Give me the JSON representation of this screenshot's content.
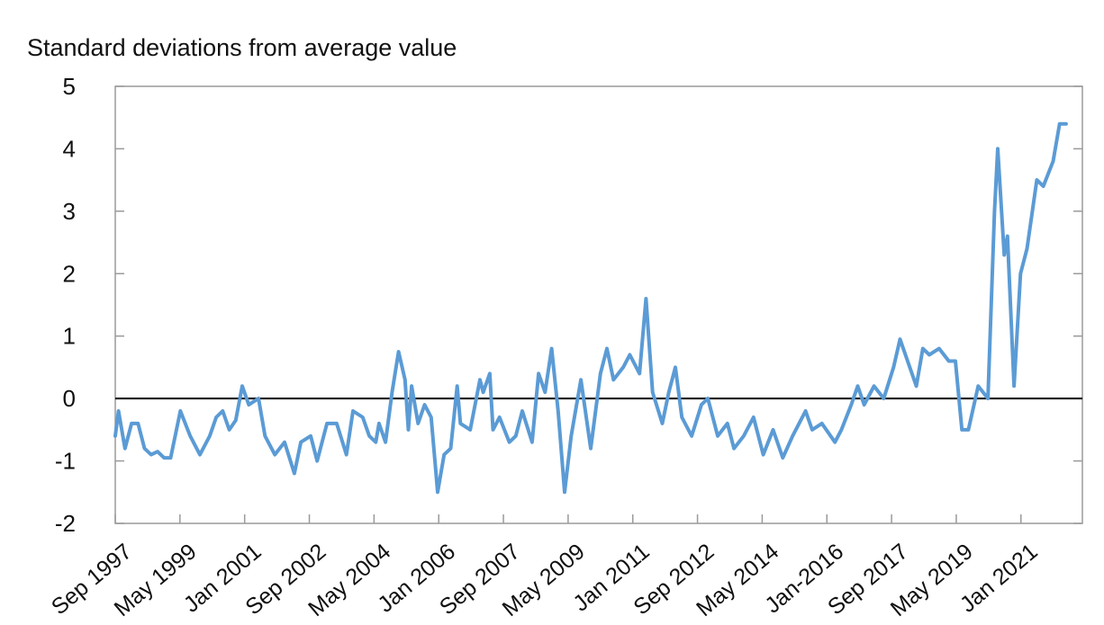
{
  "chart_data": {
    "type": "line",
    "title": "",
    "ylabel": "Standard deviations from average value",
    "xlabel": "",
    "ylim": [
      -2,
      5
    ],
    "yticks": [
      -2,
      -1,
      0,
      1,
      2,
      3,
      4,
      5
    ],
    "x_range": [
      "1997-09",
      "2022-06"
    ],
    "xticks": [
      "Sep 1997",
      "May 1999",
      "Jan 2001",
      "Sep 2002",
      "May 2004",
      "Jan 2006",
      "Sep 2007",
      "May 2009",
      "Jan 2011",
      "Sep 2012",
      "May 2014",
      "Jan-2016",
      "Sep 2017",
      "May 2019",
      "Jan 2021"
    ],
    "grid": false,
    "legend": "none",
    "series_color": "#5b9bd5",
    "zero_line_color": "#000000",
    "series": [
      {
        "points": [
          [
            "1997-09",
            -0.6
          ],
          [
            "1997-10",
            -0.2
          ],
          [
            "1997-11",
            -0.5
          ],
          [
            "1997-12",
            -0.8
          ],
          [
            "1998-02",
            -0.4
          ],
          [
            "1998-04",
            -0.4
          ],
          [
            "1998-06",
            -0.8
          ],
          [
            "1998-08",
            -0.9
          ],
          [
            "1998-10",
            -0.85
          ],
          [
            "1998-12",
            -0.95
          ],
          [
            "1999-02",
            -0.95
          ],
          [
            "1999-05",
            -0.2
          ],
          [
            "1999-08",
            -0.6
          ],
          [
            "1999-11",
            -0.9
          ],
          [
            "2000-02",
            -0.6
          ],
          [
            "2000-04",
            -0.3
          ],
          [
            "2000-06",
            -0.2
          ],
          [
            "2000-08",
            -0.5
          ],
          [
            "2000-10",
            -0.35
          ],
          [
            "2000-12",
            0.2
          ],
          [
            "2001-02",
            -0.1
          ],
          [
            "2001-05",
            0.0
          ],
          [
            "2001-07",
            -0.6
          ],
          [
            "2001-10",
            -0.9
          ],
          [
            "2002-01",
            -0.7
          ],
          [
            "2002-04",
            -1.2
          ],
          [
            "2002-06",
            -0.7
          ],
          [
            "2002-09",
            -0.6
          ],
          [
            "2002-11",
            -1.0
          ],
          [
            "2003-02",
            -0.4
          ],
          [
            "2003-05",
            -0.4
          ],
          [
            "2003-08",
            -0.9
          ],
          [
            "2003-10",
            -0.2
          ],
          [
            "2004-01",
            -0.3
          ],
          [
            "2004-03",
            -0.6
          ],
          [
            "2004-05",
            -0.7
          ],
          [
            "2004-06",
            -0.4
          ],
          [
            "2004-08",
            -0.7
          ],
          [
            "2004-10",
            0.1
          ],
          [
            "2004-12",
            0.75
          ],
          [
            "2005-02",
            0.3
          ],
          [
            "2005-03",
            -0.5
          ],
          [
            "2005-04",
            0.2
          ],
          [
            "2005-06",
            -0.4
          ],
          [
            "2005-08",
            -0.1
          ],
          [
            "2005-10",
            -0.3
          ],
          [
            "2005-12",
            -1.5
          ],
          [
            "2006-02",
            -0.9
          ],
          [
            "2006-04",
            -0.8
          ],
          [
            "2006-06",
            0.2
          ],
          [
            "2006-07",
            -0.4
          ],
          [
            "2006-10",
            -0.5
          ],
          [
            "2007-01",
            0.3
          ],
          [
            "2007-02",
            0.1
          ],
          [
            "2007-04",
            0.4
          ],
          [
            "2007-05",
            -0.5
          ],
          [
            "2007-07",
            -0.3
          ],
          [
            "2007-10",
            -0.7
          ],
          [
            "2007-12",
            -0.6
          ],
          [
            "2008-02",
            -0.2
          ],
          [
            "2008-05",
            -0.7
          ],
          [
            "2008-07",
            0.4
          ],
          [
            "2008-09",
            0.1
          ],
          [
            "2008-11",
            0.8
          ],
          [
            "2009-01",
            -0.2
          ],
          [
            "2009-03",
            -1.5
          ],
          [
            "2009-05",
            -0.6
          ],
          [
            "2009-08",
            0.3
          ],
          [
            "2009-11",
            -0.8
          ],
          [
            "2010-02",
            0.4
          ],
          [
            "2010-04",
            0.8
          ],
          [
            "2010-06",
            0.3
          ],
          [
            "2010-09",
            0.5
          ],
          [
            "2010-11",
            0.7
          ],
          [
            "2011-02",
            0.4
          ],
          [
            "2011-04",
            1.6
          ],
          [
            "2011-06",
            0.1
          ],
          [
            "2011-09",
            -0.4
          ],
          [
            "2011-11",
            0.1
          ],
          [
            "2012-01",
            0.5
          ],
          [
            "2012-03",
            -0.3
          ],
          [
            "2012-06",
            -0.6
          ],
          [
            "2012-09",
            -0.1
          ],
          [
            "2012-11",
            0.0
          ],
          [
            "2013-02",
            -0.6
          ],
          [
            "2013-05",
            -0.4
          ],
          [
            "2013-07",
            -0.8
          ],
          [
            "2013-10",
            -0.6
          ],
          [
            "2014-01",
            -0.3
          ],
          [
            "2014-04",
            -0.9
          ],
          [
            "2014-07",
            -0.5
          ],
          [
            "2014-10",
            -0.95
          ],
          [
            "2015-01",
            -0.6
          ],
          [
            "2015-05",
            -0.2
          ],
          [
            "2015-07",
            -0.5
          ],
          [
            "2015-10",
            -0.4
          ],
          [
            "2016-02",
            -0.7
          ],
          [
            "2016-04",
            -0.5
          ],
          [
            "2016-07",
            -0.1
          ],
          [
            "2016-09",
            0.2
          ],
          [
            "2016-11",
            -0.1
          ],
          [
            "2017-02",
            0.2
          ],
          [
            "2017-05",
            0.0
          ],
          [
            "2017-08",
            0.5
          ],
          [
            "2017-10",
            0.95
          ],
          [
            "2018-01",
            0.5
          ],
          [
            "2018-03",
            0.2
          ],
          [
            "2018-05",
            0.8
          ],
          [
            "2018-07",
            0.7
          ],
          [
            "2018-10",
            0.8
          ],
          [
            "2019-01",
            0.6
          ],
          [
            "2019-03",
            0.6
          ],
          [
            "2019-05",
            -0.5
          ],
          [
            "2019-07",
            -0.5
          ],
          [
            "2019-10",
            0.2
          ],
          [
            "2020-01",
            0.0
          ],
          [
            "2020-03",
            3.0
          ],
          [
            "2020-04",
            4.0
          ],
          [
            "2020-06",
            2.3
          ],
          [
            "2020-07",
            2.6
          ],
          [
            "2020-09",
            0.2
          ],
          [
            "2020-11",
            2.0
          ],
          [
            "2021-01",
            2.4
          ],
          [
            "2021-04",
            3.5
          ],
          [
            "2021-06",
            3.4
          ],
          [
            "2021-09",
            3.8
          ],
          [
            "2021-11",
            4.4
          ],
          [
            "2022-01",
            4.4
          ]
        ]
      }
    ]
  }
}
